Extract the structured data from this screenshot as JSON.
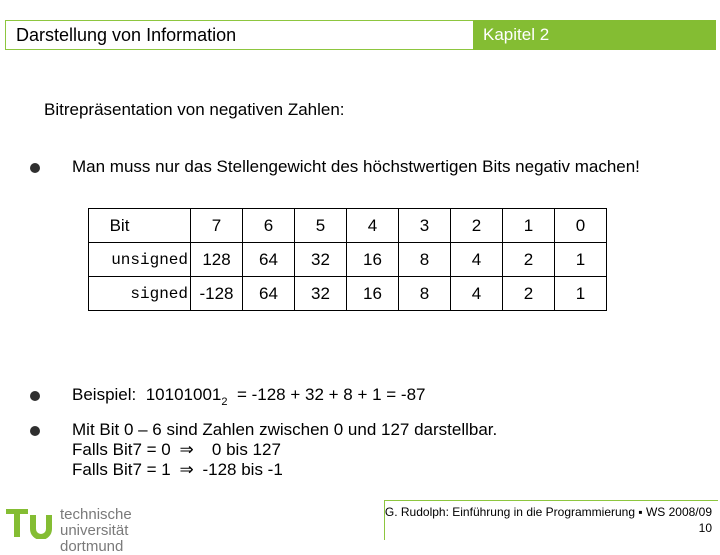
{
  "header": {
    "title": "Darstellung von Information",
    "chapter": "Kapitel 2"
  },
  "heading": "Bitrepräsentation von negativen Zahlen:",
  "bullets": {
    "b1": "Man muss nur das Stellengewicht des höchstwertigen Bits negativ machen!",
    "example_prefix": "Beispiel:",
    "example_number": "10101001",
    "example_base": "2",
    "example_rest": "= -128 + 32 + 8 + 1 = -87",
    "b3_line1": "Mit Bit 0 – 6 sind Zahlen zwischen 0 und 127 darstellbar.",
    "b3_line2a": "Falls Bit7 = 0",
    "b3_line2b": "0 bis 127",
    "b3_line3a": "Falls Bit7 = 1",
    "b3_line3b": "-128 bis -1"
  },
  "table": {
    "header_label": "Bit",
    "bits": [
      "7",
      "6",
      "5",
      "4",
      "3",
      "2",
      "1",
      "0"
    ],
    "row1_label": "unsigned",
    "row1": [
      "128",
      "64",
      "32",
      "16",
      "8",
      "4",
      "2",
      "1"
    ],
    "row2_label": "signed",
    "row2": [
      "-128",
      "64",
      "32",
      "16",
      "8",
      "4",
      "2",
      "1"
    ]
  },
  "footer": {
    "university_line1": "technische universität",
    "university_line2": "dortmund",
    "credit": "G. Rudolph: Einführung in die Programmierung ▪ WS 2008/09",
    "page": "10"
  },
  "colors": {
    "accent": "#84bd33"
  }
}
